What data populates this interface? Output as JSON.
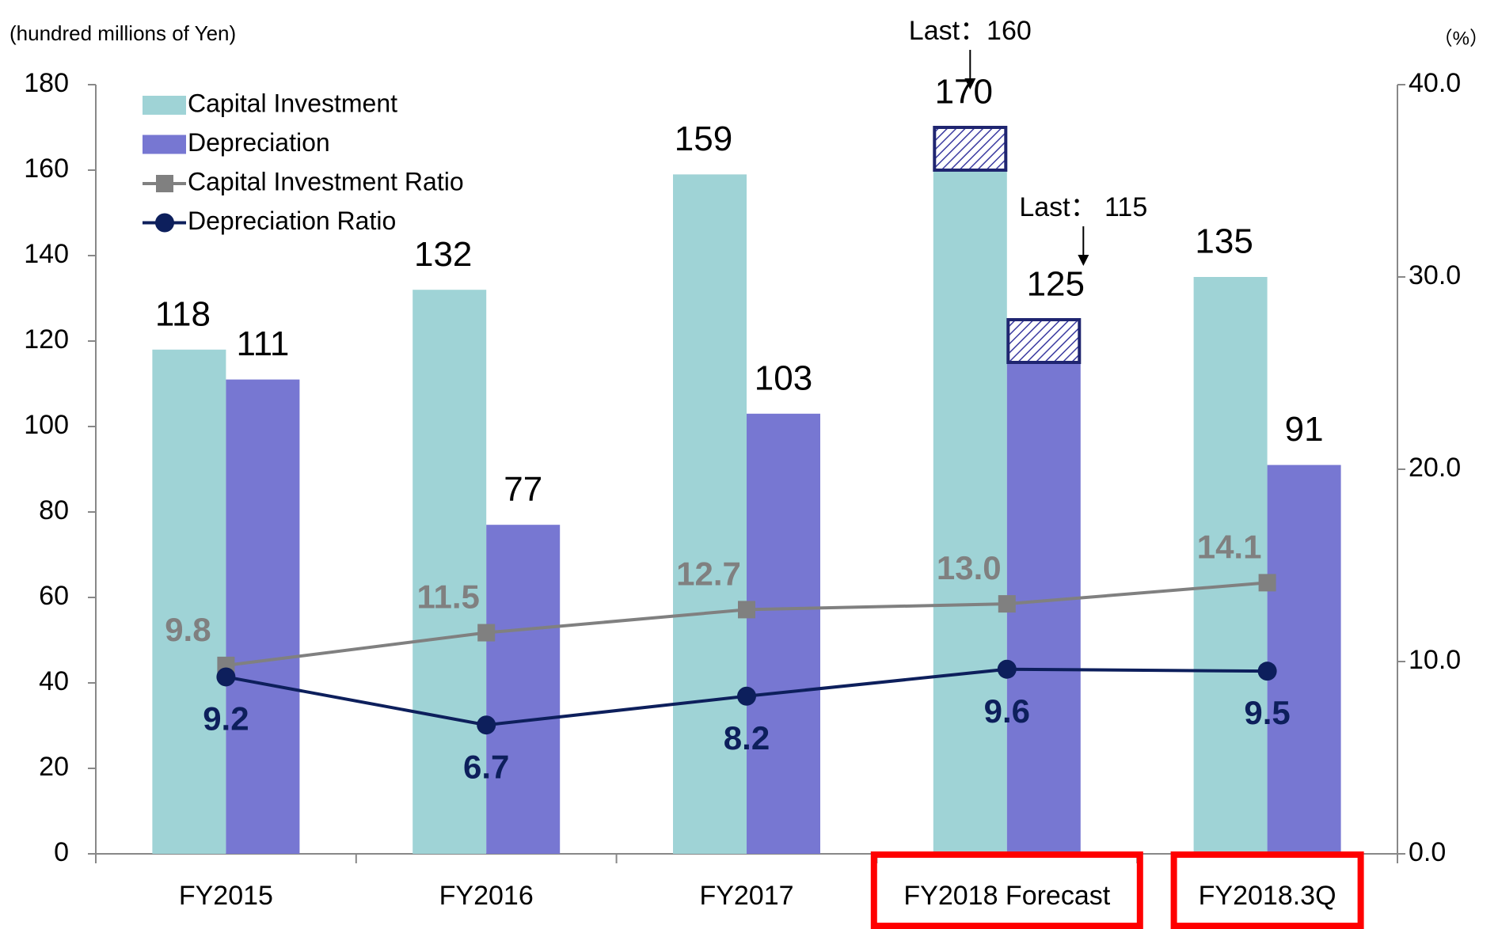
{
  "chart_data": {
    "type": "bar",
    "y_unit": "(hundred millions of Yen)",
    "y2_unit": "（%）",
    "categories": [
      "FY2015",
      "FY2016",
      "FY2017",
      "FY2018 Forecast",
      "FY2018.3Q"
    ],
    "highlight": [
      false,
      false,
      false,
      true,
      true
    ],
    "series": [
      {
        "name": "Capital Investment",
        "color": "#9fd3d6",
        "values": [
          118,
          132,
          159,
          170,
          135
        ],
        "last_values": [
          null,
          null,
          null,
          160,
          null
        ],
        "last_labels": [
          null,
          null,
          null,
          "Last：160",
          null
        ]
      },
      {
        "name": "Depreciation",
        "color": "#7777d2",
        "values": [
          111,
          77,
          103,
          125,
          91
        ],
        "last_values": [
          null,
          null,
          null,
          115,
          null
        ],
        "last_labels": [
          null,
          null,
          null,
          "Last： 115",
          null
        ]
      },
      {
        "name": "Capital Investment Ratio",
        "type": "line",
        "axis": "y2",
        "color": "#808080",
        "marker": "square",
        "values": [
          9.8,
          11.5,
          12.7,
          13.0,
          14.1
        ],
        "value_labels": [
          "9.8",
          "11.5",
          "12.7",
          "13.0",
          "14.1"
        ]
      },
      {
        "name": "Depreciation Ratio",
        "type": "line",
        "axis": "y2",
        "color": "#0d1f5c",
        "marker": "circle",
        "values": [
          9.2,
          6.7,
          8.2,
          9.6,
          9.5
        ]
      }
    ],
    "ylim": [
      0,
      180
    ],
    "yticks": [
      0,
      20,
      40,
      60,
      80,
      100,
      120,
      140,
      160,
      180
    ],
    "y2lim": [
      0,
      40
    ],
    "y2ticks": [
      {
        "value": 0,
        "label": "0.0"
      },
      {
        "value": 10,
        "label": "10.0"
      },
      {
        "value": 20,
        "label": "20.0"
      },
      {
        "value": 30,
        "label": "30.0"
      },
      {
        "value": 40,
        "label": "40.0"
      }
    ],
    "legend": "top-left"
  }
}
